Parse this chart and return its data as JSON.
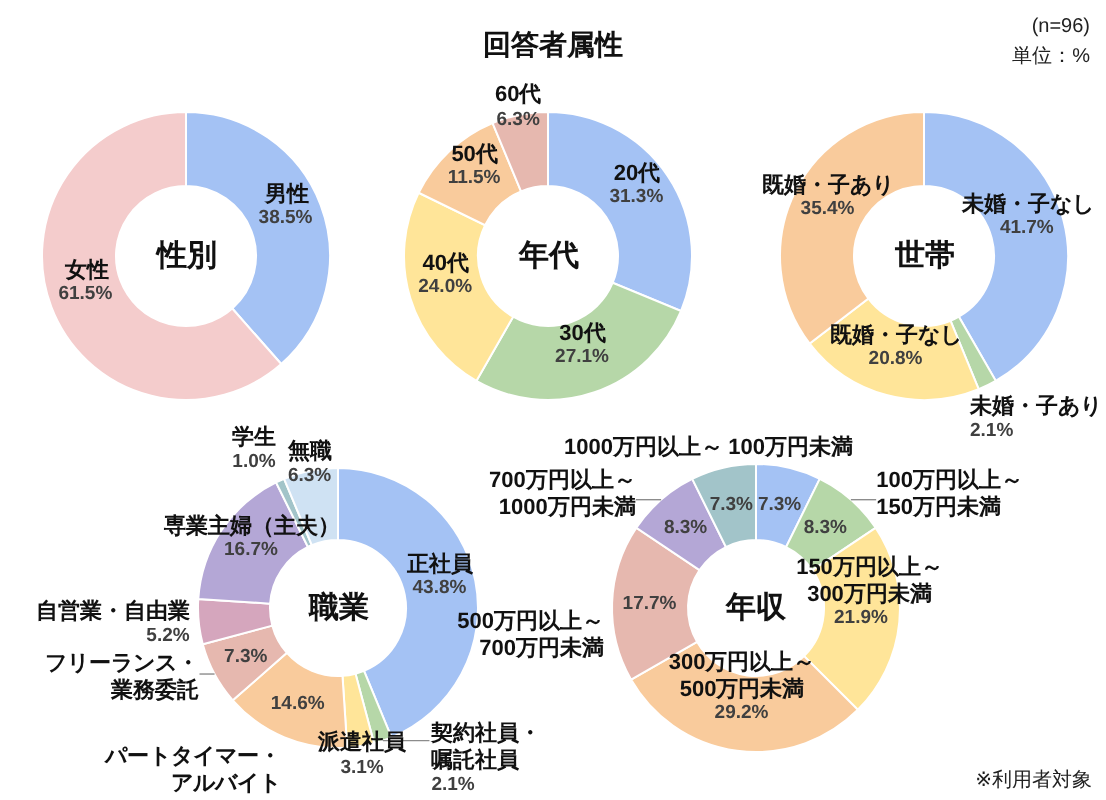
{
  "chart_data": [
    {
      "type": "other",
      "title": "回答者属性",
      "annotations": [
        "(n=96)",
        "単位：%",
        "※利用者対象"
      ]
    },
    {
      "type": "donut",
      "title": "性別",
      "categories": [
        "男性",
        "女性"
      ],
      "values": [
        38.5,
        61.5
      ],
      "value_labels": [
        "38.5%",
        "61.5%"
      ],
      "colors": [
        "#a4c2f4",
        "#f4cccc"
      ]
    },
    {
      "type": "donut",
      "title": "年代",
      "categories": [
        "20代",
        "30代",
        "40代",
        "50代",
        "60代"
      ],
      "values": [
        31.3,
        27.1,
        24.0,
        11.5,
        6.3
      ],
      "value_labels": [
        "31.3%",
        "27.1%",
        "24.0%",
        "11.5%",
        "6.3%"
      ],
      "colors": [
        "#a4c2f4",
        "#b6d7a8",
        "#ffe599",
        "#f9cb9c",
        "#e6b8af"
      ]
    },
    {
      "type": "donut",
      "title": "世帯",
      "categories": [
        "未婚・子なし",
        "未婚・子あり",
        "既婚・子なし",
        "既婚・子あり"
      ],
      "values": [
        41.7,
        2.1,
        20.8,
        35.4
      ],
      "value_labels": [
        "41.7%",
        "2.1%",
        "20.8%",
        "35.4%"
      ],
      "colors": [
        "#a4c2f4",
        "#b6d7a8",
        "#ffe599",
        "#f9cb9c"
      ]
    },
    {
      "type": "donut",
      "title": "職業",
      "categories": [
        "正社員",
        "契約社員・嘱託社員",
        "派遣社員",
        "パートタイマー・アルバイト",
        "フリーランス・業務委託",
        "自営業・自由業",
        "専業主婦（主夫）",
        "学生",
        "無職"
      ],
      "values": [
        43.8,
        2.1,
        3.1,
        14.6,
        7.3,
        5.2,
        16.7,
        1.0,
        6.3
      ],
      "value_labels": [
        "43.8%",
        "2.1%",
        "3.1%",
        "14.6%",
        "7.3%",
        "5.2%",
        "16.7%",
        "1.0%",
        "6.3%"
      ],
      "colors": [
        "#a4c2f4",
        "#b6d7a8",
        "#ffe599",
        "#f9cb9c",
        "#e6b8af",
        "#d5a6bd",
        "#b4a7d6",
        "#a2c4c9",
        "#cfe2f3"
      ]
    },
    {
      "type": "donut",
      "title": "年収",
      "categories": [
        "100万円未満",
        "100万円以上～150万円未満",
        "150万円以上～300万円未満",
        "300万円以上～500万円未満",
        "500万円以上～700万円未満",
        "700万円以上～1000万円未満",
        "1000万円以上～"
      ],
      "values": [
        7.3,
        8.3,
        21.9,
        29.2,
        17.7,
        8.3,
        7.3
      ],
      "value_labels": [
        "7.3%",
        "8.3%",
        "21.9%",
        "29.2%",
        "17.7%",
        "8.3%",
        "7.3%"
      ],
      "colors": [
        "#a4c2f4",
        "#b6d7a8",
        "#ffe599",
        "#f9cb9c",
        "#e6b8af",
        "#b4a7d6",
        "#a2c4c9"
      ]
    }
  ]
}
